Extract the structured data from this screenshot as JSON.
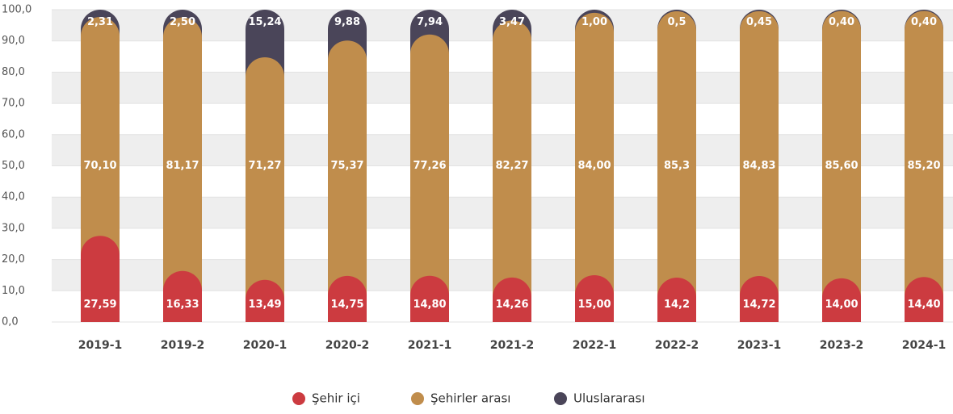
{
  "chart_data": {
    "type": "stacked_bar",
    "categories": [
      "2019-1",
      "2019-2",
      "2020-1",
      "2020-2",
      "2021-1",
      "2021-2",
      "2022-1",
      "2022-2",
      "2023-1",
      "2023-2",
      "2024-1"
    ],
    "series": [
      {
        "name": "Şehir içi",
        "color": "#cc3b40",
        "values": [
          27.59,
          16.33,
          13.49,
          14.75,
          14.8,
          14.26,
          15.0,
          14.2,
          14.72,
          14.0,
          14.4
        ],
        "value_labels": [
          "27,59",
          "16,33",
          "13,49",
          "14,75",
          "14,80",
          "14,26",
          "15,00",
          "14,2",
          "14,72",
          "14,00",
          "14,40"
        ]
      },
      {
        "name": "Şehirler arası",
        "color": "#c08d4c",
        "values": [
          70.1,
          81.17,
          71.27,
          75.37,
          77.26,
          82.27,
          84.0,
          85.3,
          84.83,
          85.6,
          85.2
        ],
        "value_labels": [
          "70,10",
          "81,17",
          "71,27",
          "75,37",
          "77,26",
          "82,27",
          "84,00",
          "85,3",
          "84,83",
          "85,60",
          "85,20"
        ]
      },
      {
        "name": "Uluslararası",
        "color": "#4a4559",
        "values": [
          2.31,
          2.5,
          15.24,
          9.88,
          7.94,
          3.47,
          1.0,
          0.5,
          0.45,
          0.4,
          0.4
        ],
        "value_labels": [
          "2,31",
          "2,50",
          "15,24",
          "9,88",
          "7,94",
          "3,47",
          "1,00",
          "0,5",
          "0,45",
          "0,40",
          "0,40"
        ]
      }
    ],
    "ylim": [
      0,
      100
    ],
    "yticks": [
      {
        "value": 0,
        "label": "0,0"
      },
      {
        "value": 10,
        "label": "10,0"
      },
      {
        "value": 20,
        "label": "20,0"
      },
      {
        "value": 30,
        "label": "30,0"
      },
      {
        "value": 40,
        "label": "40,0"
      },
      {
        "value": 50,
        "label": "50,0"
      },
      {
        "value": 60,
        "label": "60,0"
      },
      {
        "value": 70,
        "label": "70,0"
      },
      {
        "value": 80,
        "label": "80,0"
      },
      {
        "value": 90,
        "label": "90,0"
      },
      {
        "value": 100,
        "label": "100,0"
      }
    ],
    "grid": true,
    "legend": "bottom"
  }
}
